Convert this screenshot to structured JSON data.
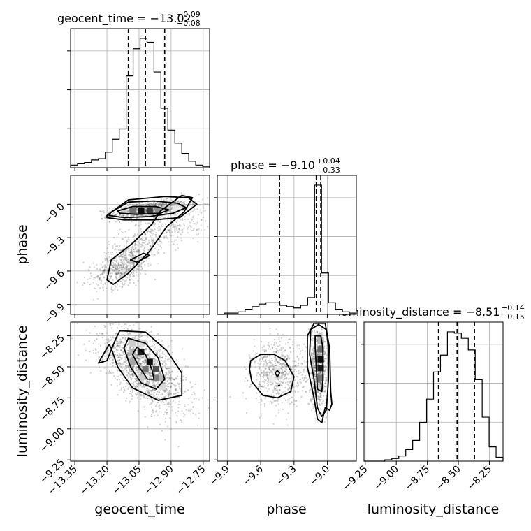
{
  "chart_data": {
    "type": "corner",
    "parameters": [
      "geocent_time",
      "phase",
      "luminosity_distance"
    ],
    "ranges": {
      "geocent_time": [
        -13.37,
        -12.72
      ],
      "phase": [
        -9.99,
        -8.74
      ],
      "luminosity_distance": [
        -9.26,
        -8.14
      ]
    },
    "ticks": {
      "geocent_time": {
        "values": [
          -13.35,
          -13.2,
          -13.05,
          -12.9,
          -12.75
        ],
        "labels": [
          "−13.35",
          "−13.20",
          "−13.05",
          "−12.90",
          "−12.75"
        ]
      },
      "phase": {
        "values": [
          -9.9,
          -9.6,
          -9.3,
          -9.0
        ],
        "labels": [
          "−9.9",
          "−9.6",
          "−9.3",
          "−9.0"
        ]
      },
      "luminosity_distance": {
        "values": [
          -9.25,
          -9.0,
          -8.75,
          -8.5,
          -8.25
        ],
        "labels": [
          "−9.25",
          "−9.00",
          "−8.75",
          "−8.50",
          "−8.25"
        ]
      }
    },
    "titles": [
      {
        "parameter": "geocent_time",
        "prefix": "geocent_time = −13.02",
        "upper": "+0.09",
        "lower": "−0.08"
      },
      {
        "parameter": "phase",
        "prefix": "phase = −9.10",
        "upper": "+0.04",
        "lower": "−0.33"
      },
      {
        "parameter": "luminosity_distance",
        "prefix": "luminosity_distance = −8.51",
        "upper": "+0.14",
        "lower": "−0.15"
      }
    ],
    "quantiles": {
      "geocent_time": [
        -13.1,
        -13.02,
        -12.93
      ],
      "phase": [
        -9.43,
        -9.1,
        -9.06
      ],
      "luminosity_distance": [
        -8.66,
        -8.51,
        -8.37
      ]
    },
    "histograms": {
      "geocent_time": {
        "edges_range": [
          -13.37,
          -12.72
        ],
        "counts": [
          0.02,
          0.03,
          0.04,
          0.06,
          0.07,
          0.12,
          0.22,
          0.3,
          0.71,
          0.92,
          1.0,
          0.97,
          0.74,
          0.46,
          0.29,
          0.19,
          0.11,
          0.05,
          0.02,
          0.01
        ]
      },
      "phase": {
        "edges_range": [
          -9.99,
          -8.74
        ],
        "counts": [
          0.0,
          0.01,
          0.01,
          0.02,
          0.04,
          0.06,
          0.08,
          0.09,
          0.09,
          0.07,
          0.06,
          0.05,
          0.07,
          0.13,
          1.0,
          0.32,
          0.09,
          0.04,
          0.02,
          0.01
        ]
      },
      "luminosity_distance": {
        "edges_range": [
          -9.26,
          -8.14
        ],
        "counts": [
          0.0,
          0.0,
          0.0,
          0.01,
          0.02,
          0.04,
          0.09,
          0.16,
          0.3,
          0.48,
          0.69,
          0.82,
          1.0,
          0.99,
          0.95,
          0.86,
          0.63,
          0.34,
          0.11,
          0.03
        ]
      }
    },
    "samples": {
      "geocent_time|phase": {
        "groups": [
          {
            "cx": -13.0,
            "cy": -9.05,
            "sx": 0.09,
            "sy": 0.04,
            "rho": 0.5,
            "n": 900
          },
          {
            "cx": -13.12,
            "cy": -9.55,
            "sx": 0.07,
            "sy": 0.1,
            "rho": 0.55,
            "n": 600
          },
          {
            "cx": -12.95,
            "cy": -9.25,
            "sx": 0.12,
            "sy": 0.12,
            "rho": 0.7,
            "n": 350
          }
        ]
      },
      "geocent_time|luminosity_distance": {
        "groups": [
          {
            "cx": -13.03,
            "cy": -8.52,
            "sx": 0.1,
            "sy": 0.17,
            "rho": -0.65,
            "n": 1500
          }
        ]
      },
      "phase|luminosity_distance": {
        "groups": [
          {
            "cx": -9.44,
            "cy": -8.55,
            "sx": 0.12,
            "sy": 0.13,
            "rho": 0.0,
            "n": 650
          },
          {
            "cx": -9.08,
            "cy": -8.5,
            "sx": 0.035,
            "sy": 0.15,
            "rho": 0.0,
            "n": 850
          }
        ]
      }
    },
    "contours": {
      "geocent_time|phase": [
        [
          [
            -13.15,
            -9.06
          ],
          [
            -13.08,
            -9.02
          ],
          [
            -12.97,
            -9.02
          ],
          [
            -12.91,
            -9.05
          ],
          [
            -12.95,
            -9.08
          ],
          [
            -13.06,
            -9.09
          ],
          [
            -13.14,
            -9.08
          ]
        ],
        [
          [
            -13.18,
            -9.07
          ],
          [
            -13.1,
            -8.98
          ],
          [
            -12.98,
            -8.97
          ],
          [
            -12.87,
            -8.99
          ],
          [
            -12.83,
            -9.03
          ],
          [
            -12.89,
            -9.08
          ],
          [
            -13.0,
            -9.11
          ],
          [
            -13.12,
            -9.12
          ],
          [
            -13.19,
            -9.1
          ]
        ],
        [
          [
            -13.2,
            -9.68
          ],
          [
            -13.18,
            -9.5
          ],
          [
            -13.08,
            -9.35
          ],
          [
            -12.99,
            -9.18
          ],
          [
            -12.95,
            -9.06
          ],
          [
            -12.85,
            -8.92
          ],
          [
            -12.8,
            -8.94
          ],
          [
            -12.84,
            -9.07
          ],
          [
            -12.92,
            -9.2
          ],
          [
            -13.0,
            -9.42
          ],
          [
            -13.1,
            -9.62
          ],
          [
            -13.17,
            -9.72
          ]
        ],
        [
          [
            -13.2,
            -9.1
          ],
          [
            -13.1,
            -8.96
          ],
          [
            -12.93,
            -8.93
          ],
          [
            -12.82,
            -8.94
          ],
          [
            -12.78,
            -9.0
          ],
          [
            -12.86,
            -9.12
          ],
          [
            -12.98,
            -9.14
          ],
          [
            -13.12,
            -9.14
          ],
          [
            -13.2,
            -9.12
          ]
        ],
        [
          [
            -13.09,
            -9.5
          ],
          [
            -13.03,
            -9.44
          ],
          [
            -13.0,
            -9.46
          ],
          [
            -13.06,
            -9.52
          ]
        ]
      ],
      "geocent_time|luminosity_distance": [
        [
          [
            -13.06,
            -8.34
          ],
          [
            -13.02,
            -8.4
          ],
          [
            -12.99,
            -8.52
          ],
          [
            -12.98,
            -8.6
          ],
          [
            -13.01,
            -8.6
          ],
          [
            -13.05,
            -8.5
          ],
          [
            -13.08,
            -8.4
          ]
        ],
        [
          [
            -13.1,
            -8.27
          ],
          [
            -13.02,
            -8.31
          ],
          [
            -12.96,
            -8.43
          ],
          [
            -12.93,
            -8.6
          ],
          [
            -12.97,
            -8.68
          ],
          [
            -13.04,
            -8.63
          ],
          [
            -13.09,
            -8.5
          ],
          [
            -13.12,
            -8.35
          ]
        ],
        [
          [
            -13.14,
            -8.21
          ],
          [
            -13.02,
            -8.22
          ],
          [
            -12.92,
            -8.37
          ],
          [
            -12.85,
            -8.55
          ],
          [
            -12.85,
            -8.73
          ],
          [
            -12.96,
            -8.77
          ],
          [
            -13.08,
            -8.67
          ],
          [
            -13.15,
            -8.5
          ],
          [
            -13.18,
            -8.35
          ],
          [
            -13.19,
            -8.32
          ],
          [
            -13.24,
            -8.47
          ],
          [
            -13.2,
            -8.45
          ],
          [
            -13.16,
            -8.28
          ]
        ]
      ],
      "phase|luminosity_distance": [
        [
          [
            -9.69,
            -8.45
          ],
          [
            -9.6,
            -8.4
          ],
          [
            -9.48,
            -8.4
          ],
          [
            -9.38,
            -8.45
          ],
          [
            -9.3,
            -8.58
          ],
          [
            -9.33,
            -8.7
          ],
          [
            -9.45,
            -8.75
          ],
          [
            -9.58,
            -8.73
          ],
          [
            -9.68,
            -8.62
          ],
          [
            -9.7,
            -8.52
          ]
        ],
        [
          [
            -9.45,
            -8.53
          ],
          [
            -9.43,
            -8.55
          ],
          [
            -9.45,
            -8.58
          ],
          [
            -9.47,
            -8.55
          ]
        ],
        [
          [
            -9.44,
            -8.65
          ],
          [
            -9.43,
            -8.65
          ]
        ],
        [
          [
            -9.11,
            -8.25
          ],
          [
            -9.06,
            -8.25
          ],
          [
            -9.04,
            -8.35
          ],
          [
            -9.04,
            -8.6
          ],
          [
            -9.05,
            -8.7
          ],
          [
            -9.09,
            -8.68
          ],
          [
            -9.1,
            -8.5
          ],
          [
            -9.11,
            -8.35
          ]
        ],
        [
          [
            -9.15,
            -8.2
          ],
          [
            -9.08,
            -8.16
          ],
          [
            -9.01,
            -8.2
          ],
          [
            -8.99,
            -8.35
          ],
          [
            -8.99,
            -8.6
          ],
          [
            -9.01,
            -8.85
          ],
          [
            -9.05,
            -8.9
          ],
          [
            -9.09,
            -8.83
          ],
          [
            -9.12,
            -8.6
          ],
          [
            -9.16,
            -8.4
          ]
        ],
        [
          [
            -9.18,
            -8.25
          ],
          [
            -9.12,
            -8.15
          ],
          [
            -9.02,
            -8.15
          ],
          [
            -8.98,
            -8.35
          ],
          [
            -8.97,
            -8.7
          ],
          [
            -8.96,
            -8.8
          ],
          [
            -8.98,
            -8.85
          ],
          [
            -9.02,
            -8.83
          ],
          [
            -9.05,
            -8.95
          ],
          [
            -9.09,
            -8.92
          ],
          [
            -9.12,
            -8.75
          ],
          [
            -9.18,
            -8.5
          ]
        ]
      ]
    },
    "density_peaks": {
      "geocent_time|phase": [
        {
          "x": -13.04,
          "y": -9.06,
          "v": 0.95
        },
        {
          "x": -13.0,
          "y": -9.06,
          "v": 0.8
        },
        {
          "x": -13.08,
          "y": -9.06,
          "v": 0.55
        },
        {
          "x": -12.96,
          "y": -9.06,
          "v": 0.45
        },
        {
          "x": -13.12,
          "y": -9.06,
          "v": 0.2
        },
        {
          "x": -12.92,
          "y": -9.04,
          "v": 0.2
        },
        {
          "x": -12.88,
          "y": -9.04,
          "v": 0.1
        }
      ],
      "geocent_time|luminosity_distance": [
        {
          "x": -13.04,
          "y": -8.38,
          "v": 0.9
        },
        {
          "x": -13.0,
          "y": -8.46,
          "v": 0.95
        },
        {
          "x": -12.97,
          "y": -8.52,
          "v": 0.7
        },
        {
          "x": -13.02,
          "y": -8.52,
          "v": 0.55
        },
        {
          "x": -12.97,
          "y": -8.59,
          "v": 0.5
        },
        {
          "x": -13.08,
          "y": -8.46,
          "v": 0.35
        },
        {
          "x": -13.08,
          "y": -8.38,
          "v": 0.3
        },
        {
          "x": -12.94,
          "y": -8.59,
          "v": 0.3
        },
        {
          "x": -13.04,
          "y": -8.59,
          "v": 0.2
        },
        {
          "x": -13.08,
          "y": -8.31,
          "v": 0.2
        },
        {
          "x": -12.94,
          "y": -8.66,
          "v": 0.15
        },
        {
          "x": -13.04,
          "y": -8.31,
          "v": 0.15
        }
      ],
      "phase|luminosity_distance": [
        {
          "x": -9.06,
          "y": -8.36,
          "v": 0.6
        },
        {
          "x": -9.06,
          "y": -8.44,
          "v": 0.95
        },
        {
          "x": -9.06,
          "y": -8.51,
          "v": 0.9
        },
        {
          "x": -9.06,
          "y": -8.59,
          "v": 0.55
        },
        {
          "x": -9.06,
          "y": -8.29,
          "v": 0.3
        },
        {
          "x": -9.06,
          "y": -8.67,
          "v": 0.2
        },
        {
          "x": -9.45,
          "y": -8.52,
          "v": 0.1
        },
        {
          "x": -9.5,
          "y": -8.6,
          "v": 0.08
        }
      ]
    },
    "grid": true
  }
}
